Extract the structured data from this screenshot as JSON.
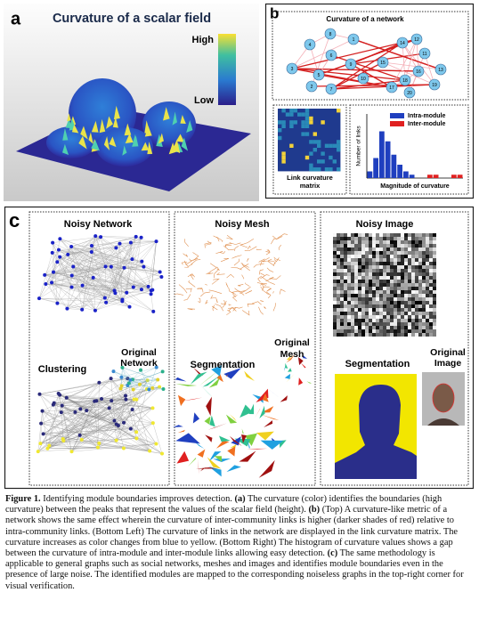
{
  "panel_a": {
    "label": "a",
    "title": "Curvature of a scalar field",
    "colorbar": {
      "high": "High",
      "low": "Low"
    }
  },
  "panel_b": {
    "label": "b",
    "network_title": "Curvature of a network",
    "nodes": [
      1,
      2,
      3,
      4,
      5,
      6,
      7,
      8,
      9,
      10,
      11,
      12,
      13,
      14,
      15,
      16,
      17,
      18,
      19,
      20
    ],
    "matrix_caption": [
      "Link curvature",
      "matrix"
    ],
    "histogram": {
      "ylabel": "Number of links",
      "xlabel": "Magnitude of curvature",
      "ylim": [
        0,
        16
      ],
      "series": [
        {
          "name": "Intra-module",
          "color": "#1f3fbf",
          "values": [
            2,
            6,
            14,
            11,
            7,
            4,
            2,
            1,
            0,
            0,
            0,
            0,
            0,
            0,
            0,
            0
          ]
        },
        {
          "name": "Inter-module",
          "color": "#e02020",
          "values": [
            0,
            0,
            0,
            0,
            0,
            0,
            0,
            0,
            0,
            0,
            1,
            1,
            0,
            0,
            1,
            1
          ]
        }
      ]
    }
  },
  "panel_c": {
    "label": "c",
    "noisy_network": "Noisy Network",
    "clustering": "Clustering",
    "original_network": [
      "Original",
      "Network"
    ],
    "noisy_mesh": "Noisy Mesh",
    "segmentation_mesh": "Segmentation",
    "original_mesh": [
      "Original",
      "Mesh"
    ],
    "noisy_image": "Noisy Image",
    "segmentation_image": "Segmentation",
    "original_image": [
      "Original",
      "Image"
    ]
  },
  "caption": [
    {
      "text": "Figure 1.",
      "bold": true
    },
    {
      "text": " Identifying module boundaries improves detection. ",
      "bold": false
    },
    {
      "text": "(a)",
      "bold": true
    },
    {
      "text": " The curvature (color) identifies the boundaries (high curvature) between the peaks that represent the values of the scalar field (height). ",
      "bold": false
    },
    {
      "text": "(b)",
      "bold": true
    },
    {
      "text": " (Top) A curvature-like metric of a network shows the same effect wherein the curvature of inter-community links is higher (darker shades of red) relative to intra-community links. (Bottom Left) The curvature of links in the network are displayed in the link curvature matrix. The curvature increases as color changes from blue to yellow. (Bottom Right) The histogram of curvature values shows a gap between the curvature of intra-module and inter-module links allowing easy detection. ",
      "bold": false
    },
    {
      "text": "(c)",
      "bold": true
    },
    {
      "text": " The same methodology is applicable to general graphs such as social networks, meshes and images and identifies module boundaries even in the presence of large noise. The identified modules are mapped to the corresponding noiseless graphs in the top-right corner for visual verification.",
      "bold": false
    }
  ]
}
